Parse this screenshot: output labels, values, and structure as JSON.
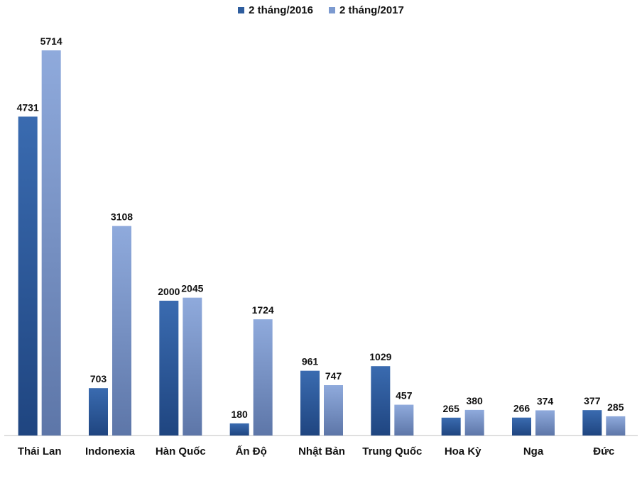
{
  "chart_data": {
    "type": "bar",
    "categories": [
      "Thái Lan",
      "Indonexia",
      "Hàn Quốc",
      "Ấn Độ",
      "Nhật Bản",
      "Trung Quốc",
      "Hoa Kỳ",
      "Nga",
      "Đức"
    ],
    "series": [
      {
        "name": "2 tháng/2016",
        "values": [
          4731,
          703,
          2000,
          180,
          961,
          1029,
          265,
          266,
          377
        ],
        "color": "#2E5D9E"
      },
      {
        "name": "2 tháng/2017",
        "values": [
          5714,
          3108,
          2045,
          1724,
          747,
          457,
          380,
          374,
          285
        ],
        "color": "#7C9AD0"
      }
    ],
    "ylim": [
      0,
      5714
    ],
    "grid": false,
    "legend_position": "top-center",
    "data_labels": true
  }
}
